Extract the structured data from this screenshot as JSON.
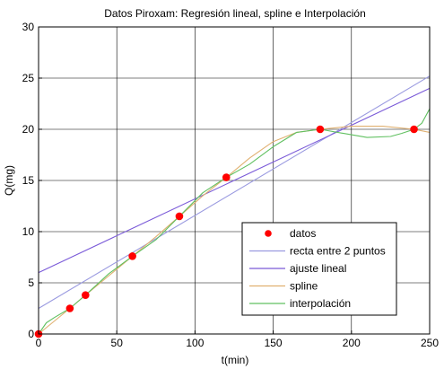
{
  "chart_data": {
    "type": "line",
    "title": "Datos Piroxam: Regresión lineal, spline e Interpolación",
    "xlabel": "t(min)",
    "ylabel": "Q(mg)",
    "xlim": [
      0,
      250
    ],
    "ylim": [
      0,
      30
    ],
    "xticks": [
      0,
      50,
      100,
      150,
      200,
      250
    ],
    "yticks": [
      0,
      5,
      10,
      15,
      20,
      25,
      30
    ],
    "grid": true,
    "legend_position": "bottom-right",
    "series": [
      {
        "name": "datos",
        "kind": "scatter",
        "color": "#ff0000",
        "x": [
          0,
          20,
          30,
          60,
          90,
          120,
          180,
          240
        ],
        "y": [
          0,
          2.5,
          3.8,
          7.6,
          11.5,
          15.3,
          20.0,
          20.0
        ]
      },
      {
        "name": "recta entre 2 puntos",
        "kind": "line",
        "color": "#9a9ae0",
        "x": [
          0,
          250
        ],
        "y": [
          2.5,
          25.2
        ]
      },
      {
        "name": "ajuste lineal",
        "kind": "line",
        "color": "#7a5ad8",
        "x": [
          0,
          250
        ],
        "y": [
          6.0,
          24.0
        ]
      },
      {
        "name": "spline",
        "kind": "line",
        "color": "#e0b070",
        "x": [
          0,
          20,
          30,
          45,
          60,
          75,
          90,
          105,
          120,
          135,
          150,
          165,
          180,
          200,
          220,
          240,
          250
        ],
        "y": [
          0,
          2.5,
          3.8,
          5.7,
          7.6,
          9.5,
          11.5,
          13.5,
          15.3,
          17.2,
          18.8,
          19.7,
          20.0,
          20.3,
          20.3,
          20.0,
          19.7
        ]
      },
      {
        "name": "interpolación",
        "kind": "line",
        "color": "#60c060",
        "x": [
          0,
          5,
          10,
          20,
          30,
          45,
          60,
          75,
          90,
          105,
          120,
          135,
          150,
          165,
          180,
          195,
          210,
          225,
          232,
          240,
          245,
          250
        ],
        "y": [
          0,
          1.1,
          1.6,
          2.5,
          3.8,
          5.9,
          7.6,
          9.2,
          11.5,
          13.8,
          15.3,
          16.6,
          18.3,
          19.7,
          20.0,
          19.6,
          19.2,
          19.3,
          19.6,
          20.0,
          20.6,
          22.0
        ]
      }
    ]
  }
}
